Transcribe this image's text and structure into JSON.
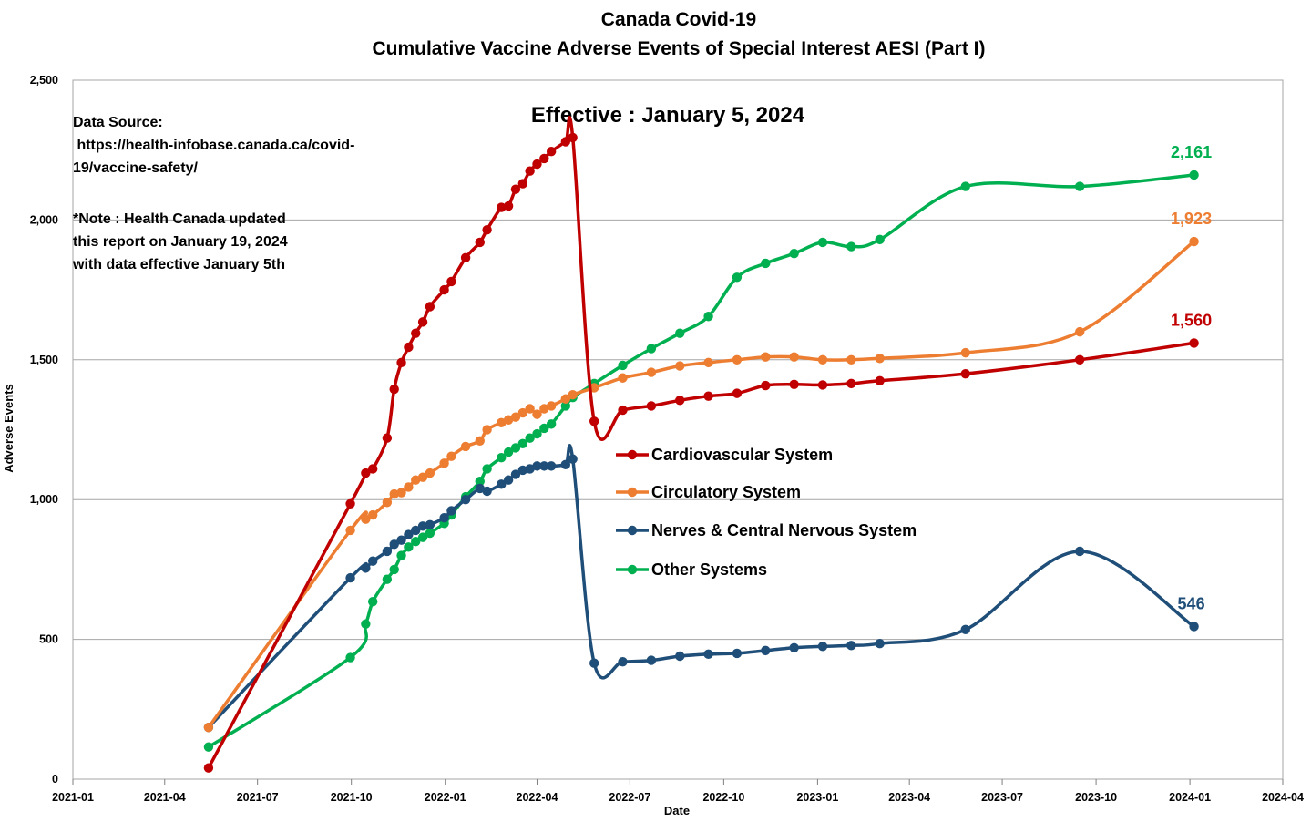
{
  "chart_data": {
    "type": "line",
    "title": "Canada Covid-19",
    "subtitle": "Cumulative Vaccine Adverse Events of Special Interest AESI (Part I)",
    "xlabel": "Date",
    "ylabel": "Adverse Events",
    "xlim": [
      "2021-01",
      "2024-04"
    ],
    "ylim": [
      0,
      2500
    ],
    "x_ticks": [
      "2021-01",
      "2021-04",
      "2021-07",
      "2021-10",
      "2022-01",
      "2022-04",
      "2022-07",
      "2022-10",
      "2023-01",
      "2023-04",
      "2023-07",
      "2023-10",
      "2024-01",
      "2024-04"
    ],
    "y_ticks": [
      0,
      500,
      1000,
      1500,
      2000,
      2500
    ],
    "y_tick_labels": [
      "0",
      "500",
      "1,000",
      "1,500",
      "2,000",
      "2,500"
    ],
    "grid": "horizontal",
    "legend_position": "center",
    "annotations": {
      "effective": "Effective : January 5, 2024",
      "source_lines": [
        "Data Source:",
        " https://health-infobase.canada.ca/covid-",
        "19/vaccine-safety/"
      ],
      "note_lines": [
        "*Note : Health Canada updated",
        "this report on January 19, 2024",
        "with data effective January 5th"
      ]
    },
    "series": [
      {
        "name": "Cardiovascular System",
        "color": "#C00000",
        "end_label": "1,560",
        "points": [
          [
            "2021-05-14",
            40
          ],
          [
            "2021-09-30",
            985
          ],
          [
            "2021-10-15",
            1095
          ],
          [
            "2021-10-22",
            1110
          ],
          [
            "2021-11-05",
            1220
          ],
          [
            "2021-11-12",
            1395
          ],
          [
            "2021-11-19",
            1490
          ],
          [
            "2021-11-26",
            1545
          ],
          [
            "2021-12-03",
            1595
          ],
          [
            "2021-12-10",
            1635
          ],
          [
            "2021-12-17",
            1690
          ],
          [
            "2021-12-31",
            1750
          ],
          [
            "2022-01-07",
            1780
          ],
          [
            "2022-01-21",
            1865
          ],
          [
            "2022-02-04",
            1920
          ],
          [
            "2022-02-11",
            1965
          ],
          [
            "2022-02-25",
            2045
          ],
          [
            "2022-03-04",
            2050
          ],
          [
            "2022-03-11",
            2110
          ],
          [
            "2022-03-18",
            2130
          ],
          [
            "2022-03-25",
            2175
          ],
          [
            "2022-04-01",
            2200
          ],
          [
            "2022-04-08",
            2220
          ],
          [
            "2022-04-15",
            2245
          ],
          [
            "2022-04-29",
            2280
          ],
          [
            "2022-05-06",
            2295
          ],
          [
            "2022-05-27",
            1280
          ],
          [
            "2022-06-24",
            1320
          ],
          [
            "2022-07-22",
            1335
          ],
          [
            "2022-08-19",
            1355
          ],
          [
            "2022-09-16",
            1370
          ],
          [
            "2022-10-14",
            1380
          ],
          [
            "2022-11-11",
            1408
          ],
          [
            "2022-12-09",
            1412
          ],
          [
            "2023-01-06",
            1410
          ],
          [
            "2023-02-03",
            1415
          ],
          [
            "2023-03-03",
            1425
          ],
          [
            "2023-05-26",
            1450
          ],
          [
            "2023-09-15",
            1500
          ],
          [
            "2024-01-05",
            1560
          ]
        ]
      },
      {
        "name": "Circulatory System",
        "color": "#ED7D31",
        "end_label": "1,923",
        "points": [
          [
            "2021-05-14",
            185
          ],
          [
            "2021-09-30",
            890
          ],
          [
            "2021-10-15",
            930
          ],
          [
            "2021-10-22",
            945
          ],
          [
            "2021-11-05",
            990
          ],
          [
            "2021-11-12",
            1020
          ],
          [
            "2021-11-19",
            1025
          ],
          [
            "2021-11-26",
            1045
          ],
          [
            "2021-12-03",
            1070
          ],
          [
            "2021-12-10",
            1080
          ],
          [
            "2021-12-17",
            1095
          ],
          [
            "2021-12-31",
            1130
          ],
          [
            "2022-01-07",
            1155
          ],
          [
            "2022-01-21",
            1190
          ],
          [
            "2022-02-04",
            1210
          ],
          [
            "2022-02-11",
            1250
          ],
          [
            "2022-02-25",
            1275
          ],
          [
            "2022-03-04",
            1285
          ],
          [
            "2022-03-11",
            1295
          ],
          [
            "2022-03-18",
            1310
          ],
          [
            "2022-03-25",
            1325
          ],
          [
            "2022-04-01",
            1305
          ],
          [
            "2022-04-08",
            1325
          ],
          [
            "2022-04-15",
            1335
          ],
          [
            "2022-04-29",
            1360
          ],
          [
            "2022-05-06",
            1375
          ],
          [
            "2022-05-27",
            1400
          ],
          [
            "2022-06-24",
            1435
          ],
          [
            "2022-07-22",
            1455
          ],
          [
            "2022-08-19",
            1478
          ],
          [
            "2022-09-16",
            1490
          ],
          [
            "2022-10-14",
            1500
          ],
          [
            "2022-11-11",
            1510
          ],
          [
            "2022-12-09",
            1510
          ],
          [
            "2023-01-06",
            1500
          ],
          [
            "2023-02-03",
            1500
          ],
          [
            "2023-03-03",
            1505
          ],
          [
            "2023-05-26",
            1525
          ],
          [
            "2023-09-15",
            1600
          ],
          [
            "2024-01-05",
            1923
          ]
        ]
      },
      {
        "name": "Nerves & Central Nervous System",
        "color": "#1F4E79",
        "end_label": "546",
        "points": [
          [
            "2021-05-14",
            185
          ],
          [
            "2021-09-30",
            720
          ],
          [
            "2021-10-15",
            755
          ],
          [
            "2021-10-22",
            780
          ],
          [
            "2021-11-05",
            815
          ],
          [
            "2021-11-12",
            840
          ],
          [
            "2021-11-19",
            855
          ],
          [
            "2021-11-26",
            875
          ],
          [
            "2021-12-03",
            890
          ],
          [
            "2021-12-10",
            905
          ],
          [
            "2021-12-17",
            910
          ],
          [
            "2021-12-31",
            935
          ],
          [
            "2022-01-07",
            960
          ],
          [
            "2022-01-21",
            1000
          ],
          [
            "2022-02-04",
            1040
          ],
          [
            "2022-02-11",
            1030
          ],
          [
            "2022-02-25",
            1055
          ],
          [
            "2022-03-04",
            1070
          ],
          [
            "2022-03-11",
            1090
          ],
          [
            "2022-03-18",
            1105
          ],
          [
            "2022-03-25",
            1110
          ],
          [
            "2022-04-01",
            1120
          ],
          [
            "2022-04-08",
            1120
          ],
          [
            "2022-04-15",
            1120
          ],
          [
            "2022-04-29",
            1125
          ],
          [
            "2022-05-06",
            1145
          ],
          [
            "2022-05-27",
            415
          ],
          [
            "2022-06-24",
            420
          ],
          [
            "2022-07-22",
            425
          ],
          [
            "2022-08-19",
            440
          ],
          [
            "2022-09-16",
            447
          ],
          [
            "2022-10-14",
            450
          ],
          [
            "2022-11-11",
            460
          ],
          [
            "2022-12-09",
            470
          ],
          [
            "2023-01-06",
            475
          ],
          [
            "2023-02-03",
            478
          ],
          [
            "2023-03-03",
            485
          ],
          [
            "2023-05-26",
            535
          ],
          [
            "2023-09-15",
            815
          ],
          [
            "2024-01-05",
            546
          ]
        ]
      },
      {
        "name": "Other Systems",
        "color": "#00B050",
        "end_label": "2,161",
        "points": [
          [
            "2021-05-14",
            115
          ],
          [
            "2021-09-30",
            435
          ],
          [
            "2021-10-15",
            555
          ],
          [
            "2021-10-22",
            635
          ],
          [
            "2021-11-05",
            715
          ],
          [
            "2021-11-12",
            750
          ],
          [
            "2021-11-19",
            800
          ],
          [
            "2021-11-26",
            830
          ],
          [
            "2021-12-03",
            850
          ],
          [
            "2021-12-10",
            865
          ],
          [
            "2021-12-17",
            880
          ],
          [
            "2021-12-31",
            915
          ],
          [
            "2022-01-07",
            945
          ],
          [
            "2022-01-21",
            1010
          ],
          [
            "2022-02-04",
            1065
          ],
          [
            "2022-02-11",
            1110
          ],
          [
            "2022-02-25",
            1150
          ],
          [
            "2022-03-04",
            1170
          ],
          [
            "2022-03-11",
            1185
          ],
          [
            "2022-03-18",
            1200
          ],
          [
            "2022-03-25",
            1220
          ],
          [
            "2022-04-01",
            1235
          ],
          [
            "2022-04-08",
            1255
          ],
          [
            "2022-04-15",
            1270
          ],
          [
            "2022-04-29",
            1335
          ],
          [
            "2022-05-06",
            1365
          ],
          [
            "2022-05-27",
            1415
          ],
          [
            "2022-06-24",
            1480
          ],
          [
            "2022-07-22",
            1540
          ],
          [
            "2022-08-19",
            1595
          ],
          [
            "2022-09-16",
            1655
          ],
          [
            "2022-10-14",
            1795
          ],
          [
            "2022-11-11",
            1845
          ],
          [
            "2022-12-09",
            1880
          ],
          [
            "2023-01-06",
            1920
          ],
          [
            "2023-02-03",
            1905
          ],
          [
            "2023-03-03",
            1930
          ],
          [
            "2023-05-26",
            2120
          ],
          [
            "2023-09-15",
            2120
          ],
          [
            "2024-01-05",
            2161
          ]
        ]
      }
    ]
  }
}
